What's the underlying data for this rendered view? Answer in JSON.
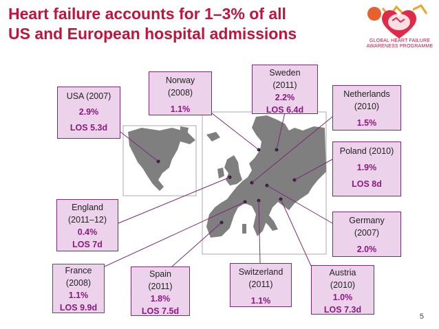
{
  "title_line1": "Heart failure accounts for 1–3% of all",
  "title_line2": "US and European hospital admissions",
  "logo": {
    "line1": "GLOBAL HEART FAILURE",
    "line2": "AWARENESS PROGRAMME",
    "accent": "#c0143c",
    "icon": "heart-globe-logo-icon"
  },
  "boxes": {
    "usa": {
      "name": "USA (2007)",
      "pct": "2.9%",
      "los": "LOS 5.3d"
    },
    "norway": {
      "name": "Norway",
      "year": "(2008)",
      "pct": "1.1%"
    },
    "sweden": {
      "name": "Sweden",
      "year": "(2011)",
      "pct": "2.2%",
      "los": "LOS 6.4d"
    },
    "netherlands": {
      "name": "Netherlands",
      "year": "(2010)",
      "pct": "1.5%"
    },
    "poland": {
      "name": "Poland (2010)",
      "pct": "1.9%",
      "los": "LOS 8d"
    },
    "england": {
      "name": "England",
      "year": "(2011–12)",
      "pct": "0.4%",
      "los": "LOS 7d"
    },
    "germany": {
      "name": "Germany",
      "year": "(2007)",
      "pct": "2.0%"
    },
    "france": {
      "name": "France",
      "year": "(2008)",
      "pct": "1.1%",
      "los": "LOS 9.9d"
    },
    "spain": {
      "name": "Spain",
      "year": "(2011)",
      "pct": "1.8%",
      "los": "LOS 7.5d"
    },
    "switzerland": {
      "name": "Switzerland",
      "year": "(2011)",
      "pct": "1.1%"
    },
    "austria": {
      "name": "Austria",
      "year": "(2010)",
      "pct": "1.0%",
      "los": "LOS 7.3d"
    }
  },
  "page_number": "5",
  "colors": {
    "box_fill": "#ecd2ea",
    "box_border": "#7a2a73",
    "value_text": "#8b1a7f",
    "land": "#7f7f7f",
    "leader": "#7a2a73"
  }
}
